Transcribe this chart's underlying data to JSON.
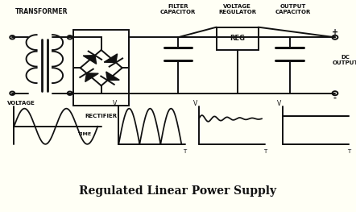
{
  "title": "Regulated Linear Power Supply",
  "title_fontsize": 10,
  "bg_color": "#fffff5",
  "diagram_bg": "#ffffff",
  "line_color": "#111111",
  "lw": 1.4,
  "labels": {
    "transformer": "TRANSFORMER",
    "rectifier": "RECTIFIER",
    "filter_cap": "FILTER\nCAPACITOR",
    "voltage_reg": "VOLTAGE\nREGULATOR",
    "output_cap": "OUTPUT\nCAPACITOR",
    "reg_box": "REG",
    "dc_output": "DC\nOUTPUT",
    "voltage": "VOLTAGE",
    "time": "TIME",
    "plus": "+",
    "minus": "-",
    "v": "V",
    "t": "T"
  }
}
